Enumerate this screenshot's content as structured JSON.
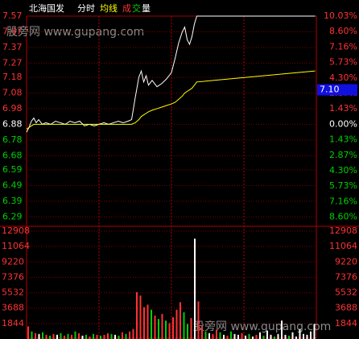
{
  "chart_data": [
    {
      "type": "line",
      "title": "北海国发",
      "subtitle": "分时",
      "x": [
        0,
        2,
        4,
        6,
        8,
        10,
        13,
        16,
        20,
        24,
        28,
        32,
        36,
        40,
        44,
        48,
        52,
        56,
        60,
        64,
        68,
        72,
        76,
        80,
        84,
        87,
        90,
        93,
        95,
        97,
        99,
        101,
        104,
        108,
        112,
        116,
        120,
        123,
        126,
        129,
        131,
        133,
        135,
        137,
        139,
        141,
        239
      ],
      "series": [
        {
          "color": "#ffffff",
          "values": [
            6.83,
            6.86,
            6.9,
            6.92,
            6.89,
            6.91,
            6.88,
            6.89,
            6.88,
            6.9,
            6.89,
            6.88,
            6.9,
            6.89,
            6.9,
            6.87,
            6.88,
            6.87,
            6.88,
            6.89,
            6.88,
            6.89,
            6.9,
            6.89,
            6.9,
            6.91,
            7.05,
            7.18,
            7.22,
            7.15,
            7.19,
            7.13,
            7.16,
            7.12,
            7.14,
            7.17,
            7.21,
            7.3,
            7.4,
            7.47,
            7.5,
            7.42,
            7.39,
            7.44,
            7.52,
            7.57,
            7.57
          ]
        },
        {
          "name": "均线",
          "color": "#ffff00",
          "values": [
            6.85,
            6.86,
            6.87,
            6.88,
            6.88,
            6.88,
            6.88,
            6.88,
            6.88,
            6.88,
            6.88,
            6.88,
            6.88,
            6.88,
            6.88,
            6.88,
            6.88,
            6.88,
            6.88,
            6.88,
            6.88,
            6.88,
            6.88,
            6.88,
            6.88,
            6.88,
            6.89,
            6.91,
            6.93,
            6.94,
            6.95,
            6.96,
            6.97,
            6.98,
            6.99,
            7.0,
            7.01,
            7.02,
            7.04,
            7.06,
            7.08,
            7.09,
            7.1,
            7.11,
            7.13,
            7.15,
            7.22
          ]
        }
      ],
      "xlim": [
        0,
        240
      ],
      "xticks": [
        60,
        120,
        180
      ],
      "ylim": [
        6.23,
        7.57
      ],
      "yticks": [
        7.57,
        7.47,
        7.37,
        7.27,
        7.18,
        7.08,
        6.98,
        6.88,
        6.78,
        6.68,
        6.59,
        6.49,
        6.39,
        6.29
      ],
      "y2lim": [
        -9.45,
        10.03
      ],
      "y2ticks": [
        {
          "value": 10.03,
          "label": "10.03%"
        },
        {
          "value": 8.6,
          "label": "8.60%"
        },
        {
          "value": 7.16,
          "label": "7.16%"
        },
        {
          "value": 5.73,
          "label": "5.73%"
        },
        {
          "value": 4.3,
          "label": "4.30%"
        },
        {
          "value": 2.87,
          "label": "2.87%"
        },
        {
          "value": 1.43,
          "label": "1.43%"
        },
        {
          "value": 0,
          "label": "0.00%"
        },
        {
          "value": -1.43,
          "label": "1.43%"
        },
        {
          "value": -2.87,
          "label": "2.87%"
        },
        {
          "value": -4.3,
          "label": "4.30%"
        },
        {
          "value": -5.73,
          "label": "5.73%"
        },
        {
          "value": -7.16,
          "label": "7.16%"
        },
        {
          "value": -8.6,
          "label": "8.60%"
        }
      ],
      "price_tag": {
        "value": 7.1,
        "label": "7.10"
      },
      "watermark": "股旁网 www.gupang.com"
    },
    {
      "type": "bar",
      "title_parts": [
        "成",
        "交",
        "量"
      ],
      "x": [
        0,
        3,
        6,
        9,
        12,
        15,
        18,
        21,
        24,
        27,
        30,
        33,
        36,
        39,
        42,
        45,
        48,
        51,
        54,
        57,
        60,
        63,
        66,
        69,
        72,
        75,
        78,
        81,
        84,
        87,
        90,
        93,
        96,
        99,
        102,
        105,
        108,
        111,
        114,
        117,
        120,
        123,
        126,
        129,
        132,
        135,
        138,
        141,
        144,
        147,
        150,
        153,
        156,
        159,
        162,
        165,
        168,
        171,
        174,
        177,
        180,
        183,
        186,
        189,
        192,
        195,
        198,
        201,
        204,
        207,
        210,
        213,
        216,
        219,
        222,
        225,
        228,
        231,
        234,
        237
      ],
      "values": [
        1500,
        900,
        700,
        600,
        800,
        500,
        400,
        600,
        500,
        700,
        400,
        600,
        500,
        900,
        700,
        400,
        500,
        300,
        600,
        500,
        400,
        500,
        700,
        600,
        500,
        400,
        800,
        600,
        900,
        1200,
        5600,
        5200,
        3800,
        4100,
        3500,
        2800,
        2400,
        3000,
        2200,
        1900,
        2600,
        3500,
        4400,
        3200,
        1800,
        2500,
        12000,
        4500,
        1500,
        900,
        700,
        600,
        1100,
        800,
        500,
        400,
        900,
        600,
        500,
        700,
        400,
        600,
        300,
        500,
        800,
        400,
        1000,
        500,
        300,
        600,
        2200,
        500,
        400,
        800,
        300,
        1200,
        600,
        500,
        900,
        1800
      ],
      "colors": [
        "#ff3232",
        "#00d000",
        "#ff3232",
        "#ffffff",
        "#00d000",
        "#ff3232",
        "#00d000",
        "#ff3232",
        "#ffffff",
        "#00d000",
        "#ff3232",
        "#00d000",
        "#ff3232",
        "#00d000",
        "#ff3232",
        "#ffffff",
        "#00d000",
        "#ff3232",
        "#00d000",
        "#ff3232",
        "#00d000",
        "#ff3232",
        "#ff3232",
        "#00d000",
        "#ffffff",
        "#00d000",
        "#ff3232",
        "#00d000",
        "#ff3232",
        "#ff3232",
        "#ff3232",
        "#ff3232",
        "#ff3232",
        "#ff3232",
        "#00d000",
        "#ff3232",
        "#00d000",
        "#ff3232",
        "#00d000",
        "#ff3232",
        "#ff3232",
        "#ff3232",
        "#ff3232",
        "#00d000",
        "#00d000",
        "#ff3232",
        "#ffffff",
        "#ff3232",
        "#ff3232",
        "#00d000",
        "#ffffff",
        "#ff3232",
        "#ff3232",
        "#00d000",
        "#ffffff",
        "#ff3232",
        "#00d000",
        "#ffffff",
        "#ffffff",
        "#ff3232",
        "#ffffff",
        "#00d000",
        "#ffffff",
        "#ff3232",
        "#ffffff",
        "#00d000",
        "#ffffff",
        "#ffffff",
        "#00d000",
        "#ffffff",
        "#ffffff",
        "#ffffff",
        "#00d000",
        "#ffffff",
        "#ffffff",
        "#ffffff",
        "#ffffff",
        "#ffffff",
        "#ffffff",
        "#ffffff"
      ],
      "xlim": [
        0,
        240
      ],
      "ylim": [
        0,
        12908
      ],
      "yticks": [
        12908,
        11064,
        9220,
        7376,
        5532,
        3688,
        1844
      ],
      "watermark": "股旁网 www.gupang.com"
    }
  ]
}
